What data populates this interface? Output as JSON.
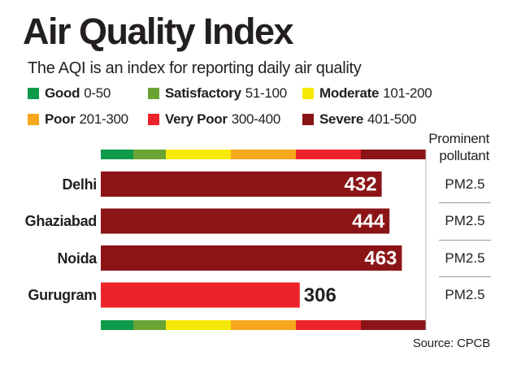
{
  "title": "Air Quality Index",
  "subtitle": "The AQI is an index for reporting daily air quality",
  "legend": [
    {
      "name": "Good",
      "range": "0-50",
      "color": "#0e9a4b"
    },
    {
      "name": "Satisfactory",
      "range": "51-100",
      "color": "#6aa434"
    },
    {
      "name": "Moderate",
      "range": "101-200",
      "color": "#f7e907"
    },
    {
      "name": "Poor",
      "range": "201-300",
      "color": "#f5a81d"
    },
    {
      "name": "Very Poor",
      "range": "300-400",
      "color": "#ec2429"
    },
    {
      "name": "Severe",
      "range": "401-500",
      "color": "#8b1416"
    }
  ],
  "pollutant_header": {
    "line1": "Prominent",
    "line2": "pollutant"
  },
  "source": "Source: CPCB",
  "chart_data": {
    "type": "bar",
    "orientation": "horizontal",
    "title": "Air Quality Index",
    "categories": [
      "Delhi",
      "Ghaziabad",
      "Noida",
      "Gurugram"
    ],
    "values": [
      432,
      444,
      463,
      306
    ],
    "value_labels": [
      "432",
      "444",
      "463",
      "306"
    ],
    "prominent_pollutant": [
      "PM2.5",
      "PM2.5",
      "PM2.5",
      "PM2.5"
    ],
    "xlim": [
      0,
      500
    ],
    "bands": [
      {
        "name": "Good",
        "from": 0,
        "to": 50,
        "color": "#0e9a4b"
      },
      {
        "name": "Satisfactory",
        "from": 50,
        "to": 100,
        "color": "#6aa434"
      },
      {
        "name": "Moderate",
        "from": 100,
        "to": 200,
        "color": "#f7e907"
      },
      {
        "name": "Poor",
        "from": 200,
        "to": 300,
        "color": "#f5a81d"
      },
      {
        "name": "Very Poor",
        "from": 300,
        "to": 400,
        "color": "#ec2429"
      },
      {
        "name": "Severe",
        "from": 400,
        "to": 500,
        "color": "#8b1416"
      }
    ],
    "grid": false,
    "legend_position": "top"
  }
}
